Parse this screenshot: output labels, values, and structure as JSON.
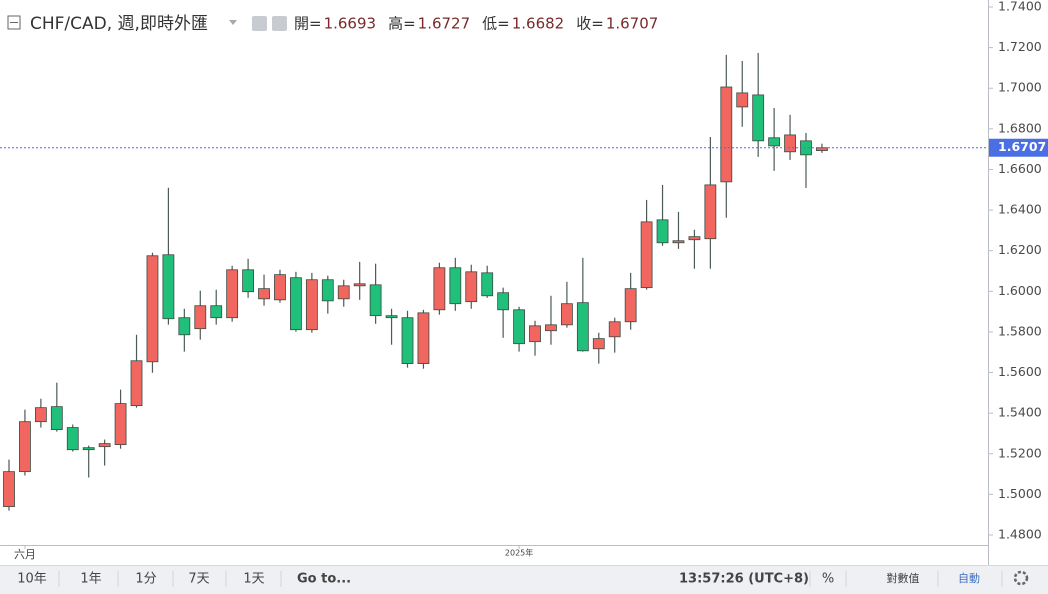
{
  "chart_data": {
    "type": "candlestick",
    "title": "CHF/CAD, 週,即時外匯",
    "legend_labels": [
      "開=",
      "高=",
      "低=",
      "收="
    ],
    "categories": [
      null,
      "六月",
      null,
      null,
      null,
      null,
      null,
      null,
      null,
      null,
      null,
      null,
      null,
      null,
      null,
      null,
      null,
      null,
      null,
      null,
      null,
      null,
      null,
      null,
      null,
      null,
      null,
      null,
      null,
      null,
      null,
      null,
      "2025年",
      null,
      null,
      null,
      null,
      null,
      null,
      null,
      null,
      null,
      null,
      null,
      null,
      null,
      null,
      null,
      null,
      null,
      null,
      null
    ],
    "open": [
      1.494,
      1.5112,
      1.5358,
      1.5432,
      1.5329,
      1.523,
      1.5235,
      1.5245,
      1.5437,
      1.5653,
      1.618,
      1.587,
      1.5816,
      1.5929,
      1.587,
      1.6106,
      1.5963,
      1.5958,
      1.6067,
      1.5811,
      1.6057,
      1.5963,
      1.6027,
      1.6032,
      1.588,
      1.587,
      1.5644,
      1.5909,
      1.6116,
      1.5949,
      1.6091,
      1.5993,
      1.5909,
      1.5752,
      1.5806,
      1.5835,
      1.5944,
      1.5717,
      1.5776,
      1.585,
      1.6018,
      1.6352,
      1.6239,
      1.6254,
      1.6259,
      1.6539,
      1.6908,
      1.6967,
      1.6756,
      1.6687,
      1.6741,
      1.6693
    ],
    "high": [
      1.5171,
      1.5417,
      1.5471,
      1.555,
      1.5344,
      1.524,
      1.527,
      1.5516,
      1.5786,
      1.619,
      1.651,
      1.5914,
      1.6003,
      1.6008,
      1.6126,
      1.616,
      1.6082,
      1.6106,
      1.6096,
      1.6091,
      1.6077,
      1.6057,
      1.6145,
      1.6136,
      1.5914,
      1.5904,
      1.5909,
      1.6141,
      1.6165,
      1.6131,
      1.6126,
      1.6018,
      1.5924,
      1.5855,
      1.5978,
      1.6047,
      1.6165,
      1.5796,
      1.587,
      1.6091,
      1.645,
      1.6524,
      1.6391,
      1.6303,
      1.676,
      1.7164,
      1.7134,
      1.7174,
      1.6903,
      1.6869,
      1.678,
      1.6727
    ],
    "low": [
      1.492,
      1.5093,
      1.5329,
      1.5309,
      1.5211,
      1.5083,
      1.5142,
      1.5225,
      1.5427,
      1.5599,
      1.5836,
      1.5703,
      1.5762,
      1.5836,
      1.585,
      1.5968,
      1.5929,
      1.5944,
      1.5801,
      1.5796,
      1.589,
      1.5924,
      1.5958,
      1.584,
      1.5737,
      1.5624,
      1.5619,
      1.5885,
      1.5904,
      1.5914,
      1.5968,
      1.5771,
      1.5703,
      1.5683,
      1.5737,
      1.5821,
      1.5703,
      1.5644,
      1.5698,
      1.5811,
      1.6008,
      1.6224,
      1.6209,
      1.6111,
      1.6111,
      1.6362,
      1.681,
      1.6662,
      1.6593,
      1.6647,
      1.6509,
      1.6682
    ],
    "close": [
      1.5112,
      1.5358,
      1.5427,
      1.5319,
      1.522,
      1.522,
      1.525,
      1.5447,
      1.5658,
      1.6175,
      1.5865,
      1.5786,
      1.5929,
      1.587,
      1.6106,
      1.5998,
      1.6013,
      1.6082,
      1.5811,
      1.6057,
      1.5953,
      1.6027,
      1.6037,
      1.588,
      1.587,
      1.5644,
      1.5894,
      1.6116,
      1.5939,
      1.6096,
      1.5978,
      1.5909,
      1.5742,
      1.583,
      1.5835,
      1.5939,
      1.5707,
      1.5767,
      1.585,
      1.6013,
      1.6342,
      1.6239,
      1.6249,
      1.6269,
      1.6524,
      1.7006,
      1.6977,
      1.6741,
      1.6716,
      1.677,
      1.6672,
      1.6707
    ],
    "up_color": "#f26660",
    "down_color": "#20c07a",
    "wick_color": "#4d5a56",
    "last_line_color": "#4a6fe3",
    "ylim": [
      1.48,
      1.74
    ],
    "yticks": [
      {
        "value": 1.48,
        "label": "1.4800"
      },
      {
        "value": 1.5,
        "label": "1.5000"
      },
      {
        "value": 1.52,
        "label": "1.5200"
      },
      {
        "value": 1.54,
        "label": "1.5400"
      },
      {
        "value": 1.56,
        "label": "1.5600"
      },
      {
        "value": 1.58,
        "label": "1.5800"
      },
      {
        "value": 1.6,
        "label": "1.6000"
      },
      {
        "value": 1.62,
        "label": "1.6200"
      },
      {
        "value": 1.64,
        "label": "1.6400"
      },
      {
        "value": 1.66,
        "label": "1.6600"
      },
      {
        "value": 1.68,
        "label": "1.6800"
      },
      {
        "value": 1.7,
        "label": "1.7000"
      },
      {
        "value": 1.72,
        "label": "1.7200"
      },
      {
        "value": 1.74,
        "label": "1.7400"
      }
    ],
    "grid": false
  },
  "toolbar": {
    "ranges": [
      "10年",
      "1年",
      "1分",
      "7天",
      "1天"
    ],
    "active_range": 1,
    "goto": "Go to...",
    "time": "13:57:26 (UTC+8)",
    "percent": "%",
    "log": "對數值",
    "auto": "自動"
  }
}
